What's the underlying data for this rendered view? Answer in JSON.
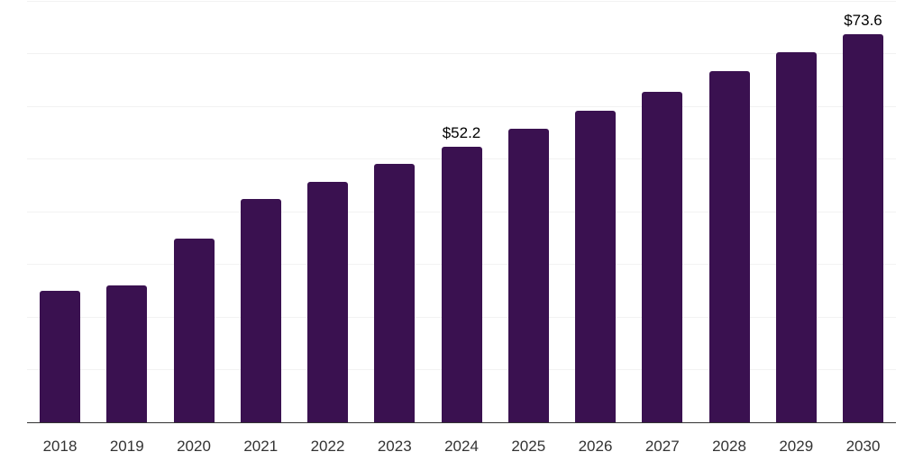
{
  "chart_data": {
    "type": "bar",
    "title": "",
    "categories": [
      "2018",
      "2019",
      "2020",
      "2021",
      "2022",
      "2023",
      "2024",
      "2025",
      "2026",
      "2027",
      "2028",
      "2029",
      "2030"
    ],
    "values": [
      24.9,
      25.9,
      34.8,
      42.3,
      45.5,
      48.9,
      52.2,
      55.7,
      59.1,
      62.7,
      66.5,
      70.1,
      73.6
    ],
    "data_labels": [
      "",
      "",
      "",
      "",
      "",
      "",
      "$52.2",
      "",
      "",
      "",
      "",
      "",
      "$73.6"
    ],
    "xlabel": "",
    "ylabel": "",
    "ylim": [
      0,
      80
    ],
    "grid_step": 10,
    "grid": true,
    "legend": false,
    "colors": {
      "bar": "#3A1150",
      "axis_line": "#333333",
      "gridline": "#F2F2F2",
      "tick_label": "#333333",
      "data_label": "#000000",
      "background": "#FFFFFF"
    }
  }
}
